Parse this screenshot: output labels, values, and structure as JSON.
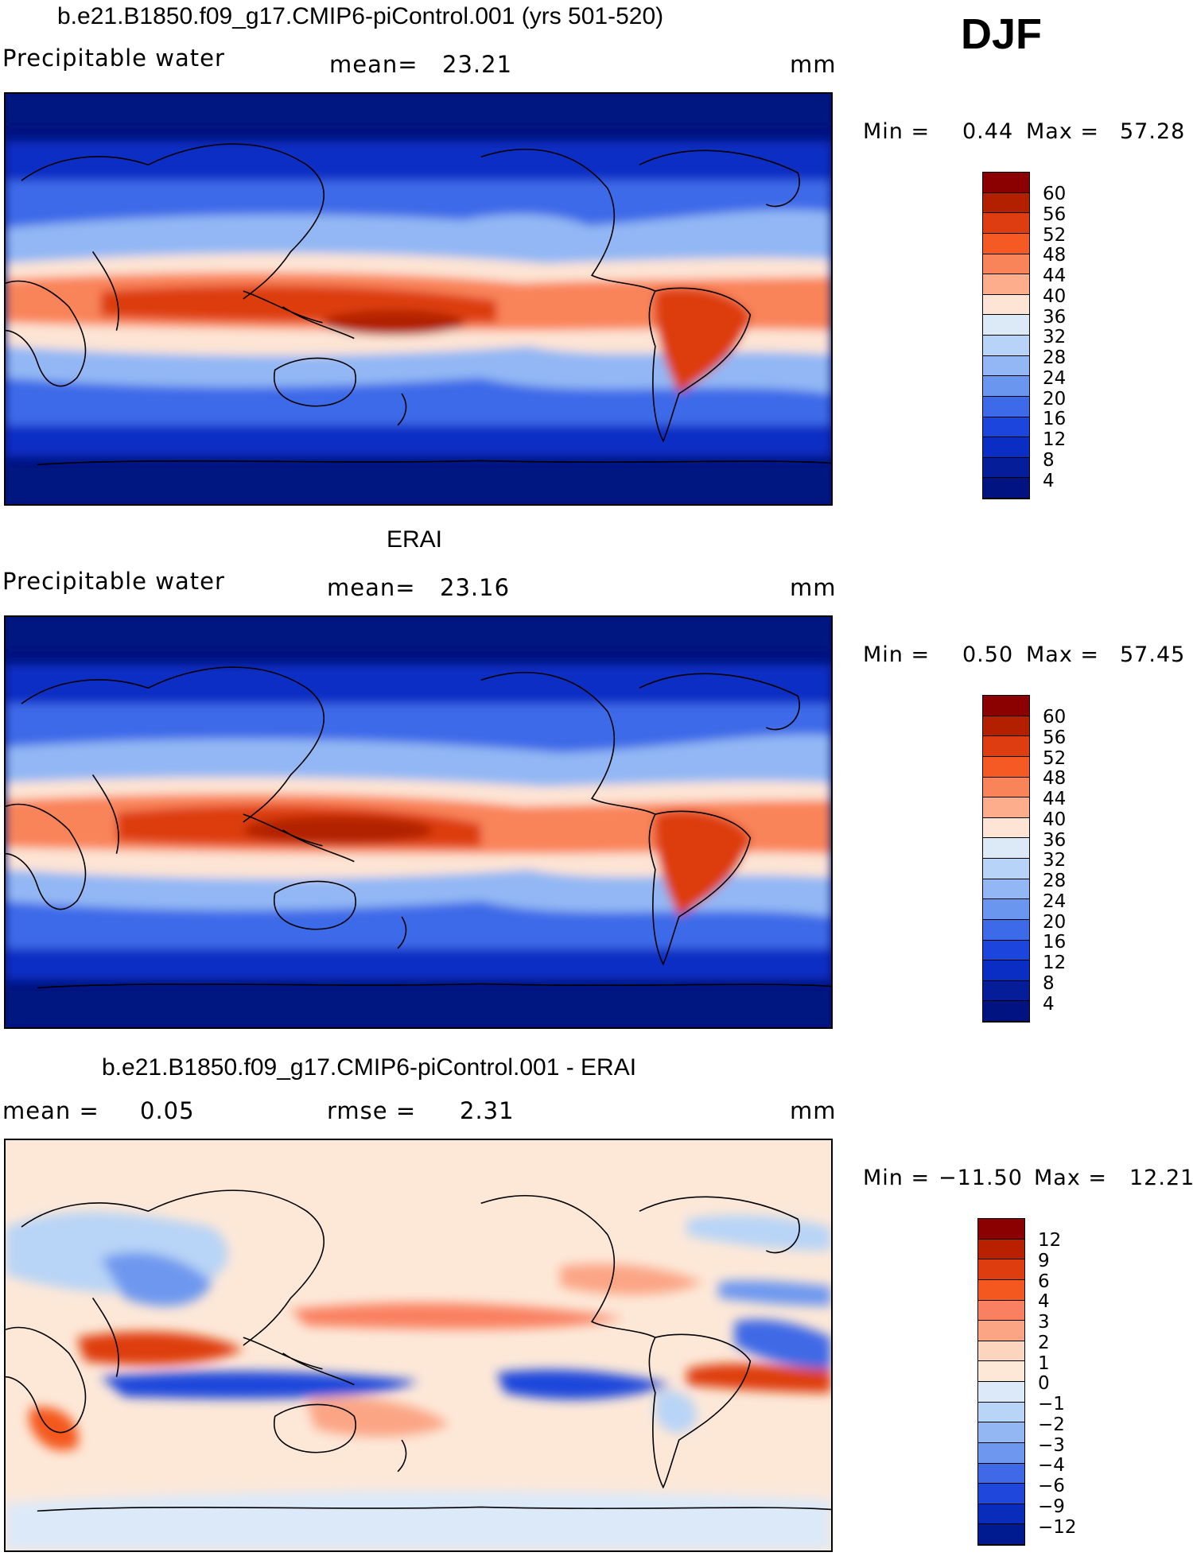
{
  "season": "DJF",
  "panels": [
    {
      "title": "b.e21.B1850.f09_g17.CMIP6-piControl.001 (yrs 501-520)",
      "left_label": "Precipitable  water",
      "center_label": "mean=",
      "center_value": "23.21",
      "unit": "mm",
      "min_label": "Min =",
      "min_value": "0.44",
      "max_label": "Max =",
      "max_value": "57.28",
      "ticks": [
        "60",
        "56",
        "52",
        "48",
        "44",
        "40",
        "36",
        "32",
        "28",
        "24",
        "20",
        "16",
        "12",
        "8",
        "4"
      ]
    },
    {
      "title": "ERAI",
      "left_label": "Precipitable  water",
      "center_label": "mean=",
      "center_value": "23.16",
      "unit": "mm",
      "min_label": "Min =",
      "min_value": "0.50",
      "max_label": "Max =",
      "max_value": "57.45",
      "ticks": [
        "60",
        "56",
        "52",
        "48",
        "44",
        "40",
        "36",
        "32",
        "28",
        "24",
        "20",
        "16",
        "12",
        "8",
        "4"
      ]
    },
    {
      "title": "b.e21.B1850.f09_g17.CMIP6-piControl.001 - ERAI",
      "left_label": "mean =",
      "left_value": "0.05",
      "center_label": "rmse =",
      "center_value": "2.31",
      "unit": "mm",
      "min_label": "Min =",
      "min_value": "−11.50",
      "max_label": "Max =",
      "max_value": "12.21",
      "ticks": [
        "12",
        "9",
        "6",
        "4",
        "3",
        "2",
        "1",
        "0",
        "−1",
        "−2",
        "−3",
        "−4",
        "−6",
        "−9",
        "−12"
      ]
    }
  ],
  "colors": {
    "sequential": [
      "#8b0000",
      "#b22000",
      "#dd3d10",
      "#f55a25",
      "#f9845a",
      "#fdad8b",
      "#fde4d4",
      "#dceaf8",
      "#b7d3f7",
      "#93b7f4",
      "#6a96ef",
      "#3c6ae8",
      "#1b45dc",
      "#0a2ec4",
      "#051d98",
      "#001380"
    ],
    "diverging": [
      "#8b0000",
      "#b82000",
      "#de3d10",
      "#f4581f",
      "#f98060",
      "#fba585",
      "#fcd5bf",
      "#fde8d8",
      "#dce9f8",
      "#b8d4f6",
      "#93b7f3",
      "#6e98ef",
      "#3f69e6",
      "#1f47db",
      "#0a2cba",
      "#001a90"
    ]
  }
}
